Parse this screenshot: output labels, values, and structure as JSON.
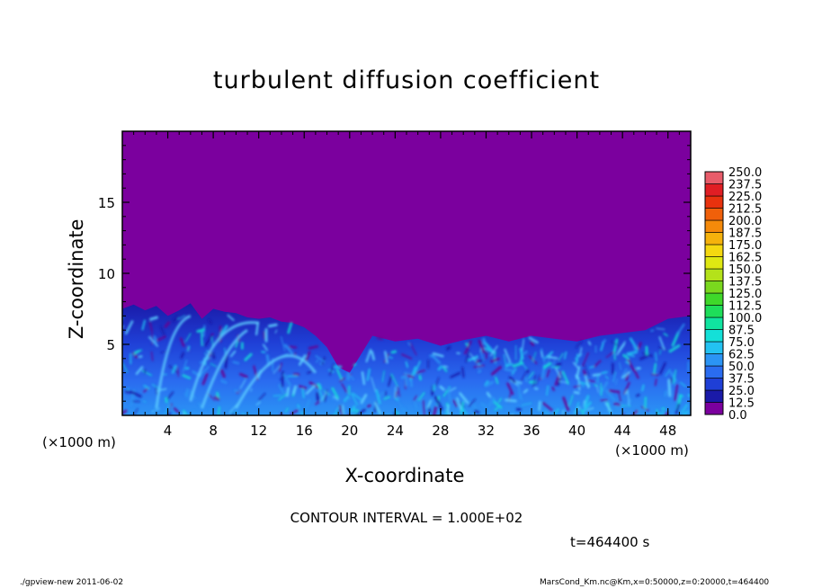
{
  "chart_data": {
    "type": "heatmap",
    "title": "turbulent diffusion coefficient",
    "xlabel": "X-coordinate",
    "ylabel": "Z-coordinate",
    "x_unit": "(×1000 m)",
    "y_unit": "(×1000 m)",
    "xlim": [
      0,
      50
    ],
    "ylim": [
      0,
      20
    ],
    "x_ticks": [
      4,
      8,
      12,
      16,
      20,
      24,
      28,
      32,
      36,
      40,
      44,
      48
    ],
    "y_ticks": [
      5,
      10,
      15
    ],
    "colorbar": {
      "levels": [
        "0.0",
        "12.5",
        "25.0",
        "37.5",
        "50.0",
        "62.5",
        "75.0",
        "87.5",
        "100.0",
        "112.5",
        "125.0",
        "137.5",
        "150.0",
        "162.5",
        "175.0",
        "187.5",
        "200.0",
        "212.5",
        "225.0",
        "237.5",
        "250.0"
      ],
      "colors": [
        "#7b009e",
        "#1a1aa8",
        "#1f3fd6",
        "#2a6cf0",
        "#2b94f5",
        "#23c2f2",
        "#14e0d8",
        "#10e4a0",
        "#1ede5a",
        "#3fd82a",
        "#7ad81e",
        "#b4e21a",
        "#dfe812",
        "#f5d810",
        "#f5b20c",
        "#f58a0a",
        "#f0600a",
        "#e8320e",
        "#e01e24",
        "#e85c6a"
      ]
    },
    "boundary_layer_top": [
      [
        0,
        7.5
      ],
      [
        1,
        7.8
      ],
      [
        2,
        7.4
      ],
      [
        3,
        7.7
      ],
      [
        4,
        7.0
      ],
      [
        5,
        7.4
      ],
      [
        6,
        7.9
      ],
      [
        7,
        6.8
      ],
      [
        8,
        7.5
      ],
      [
        9,
        7.3
      ],
      [
        10,
        7.2
      ],
      [
        11,
        6.9
      ],
      [
        12,
        6.8
      ],
      [
        13,
        6.9
      ],
      [
        14,
        6.6
      ],
      [
        15,
        6.5
      ],
      [
        16,
        6.2
      ],
      [
        17,
        5.6
      ],
      [
        18,
        4.8
      ],
      [
        19,
        3.4
      ],
      [
        20,
        3.0
      ],
      [
        22,
        5.6
      ],
      [
        24,
        5.2
      ],
      [
        26,
        5.4
      ],
      [
        28,
        4.9
      ],
      [
        30,
        5.3
      ],
      [
        32,
        5.6
      ],
      [
        34,
        5.2
      ],
      [
        36,
        5.6
      ],
      [
        38,
        5.4
      ],
      [
        40,
        5.2
      ],
      [
        42,
        5.6
      ],
      [
        44,
        5.8
      ],
      [
        46,
        6.0
      ],
      [
        48,
        6.8
      ],
      [
        50,
        7.0
      ]
    ],
    "background_value": "0.0"
  },
  "contour_interval": "CONTOUR INTERVAL = 1.000E+02",
  "time": "t=464400 s",
  "footer_left": "./gpview-new   2011-06-02",
  "footer_right": "MarsCond_Km.nc@Km,x=0:50000,z=0:20000,t=464400"
}
